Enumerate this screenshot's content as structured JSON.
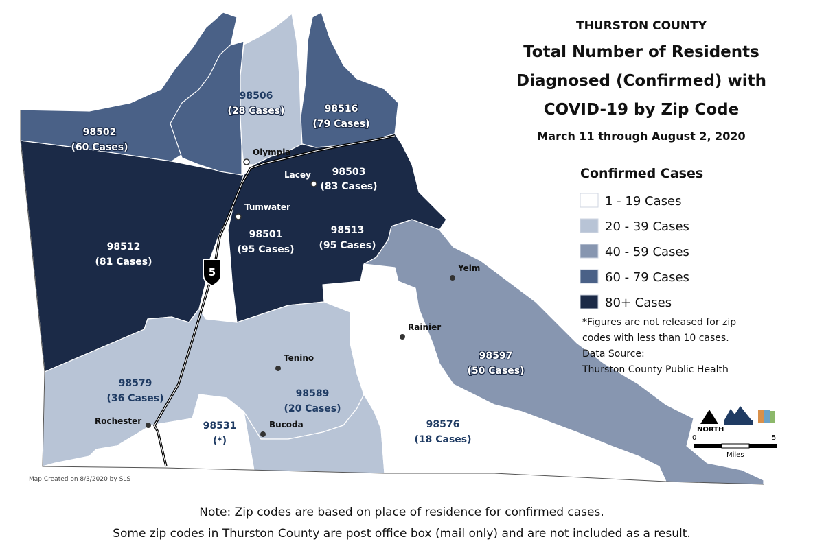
{
  "header": {
    "county": "THURSTON COUNTY",
    "title_lines": [
      "Total Number of Residents",
      "Diagnosed (Confirmed) with",
      "COVID-19 by Zip Code"
    ],
    "date_range": "March 11 through August 2, 2020"
  },
  "legend": {
    "title": "Confirmed Cases",
    "items": [
      {
        "label": "1 - 19 Cases",
        "color": "#ffffff"
      },
      {
        "label": "20 - 39 Cases",
        "color": "#b8c4d6"
      },
      {
        "label": "40 - 59 Cases",
        "color": "#8796b0"
      },
      {
        "label": "60 - 79 Cases",
        "color": "#4a6187"
      },
      {
        "label": "80+ Cases",
        "color": "#1b2a47"
      }
    ]
  },
  "footnote_lines": [
    "*Figures are not released for zip",
    "codes with less than 10 cases.",
    "Data Source:",
    "Thurston County Public Health"
  ],
  "zips": [
    {
      "zip": "98502",
      "cases": "(60 Cases)"
    },
    {
      "zip": "98506",
      "cases": "(28 Cases)"
    },
    {
      "zip": "98516",
      "cases": "(79 Cases)"
    },
    {
      "zip": "98503",
      "cases": "(83 Cases)"
    },
    {
      "zip": "98512",
      "cases": "(81 Cases)"
    },
    {
      "zip": "98501",
      "cases": "(95 Cases)"
    },
    {
      "zip": "98513",
      "cases": "(95 Cases)"
    },
    {
      "zip": "98597",
      "cases": "(50 Cases)"
    },
    {
      "zip": "98579",
      "cases": "(36 Cases)"
    },
    {
      "zip": "98589",
      "cases": "(20 Cases)"
    },
    {
      "zip": "98531",
      "cases": "(*)"
    },
    {
      "zip": "98576",
      "cases": "(18 Cases)"
    }
  ],
  "cities": [
    "Olympia",
    "Lacey",
    "Tumwater",
    "Yelm",
    "Rainier",
    "Tenino",
    "Rochester",
    "Bucoda"
  ],
  "highway": "5",
  "compass": "NORTH",
  "scale": {
    "start": "0",
    "end": "5",
    "unit": "Miles"
  },
  "credit": "Map Created on 8/3/2020 by SLS",
  "notes": [
    "Note: Zip codes are based on place of residence for confirmed cases.",
    "Some zip codes in Thurston County are post office box (mail only) and are not included as a result."
  ]
}
